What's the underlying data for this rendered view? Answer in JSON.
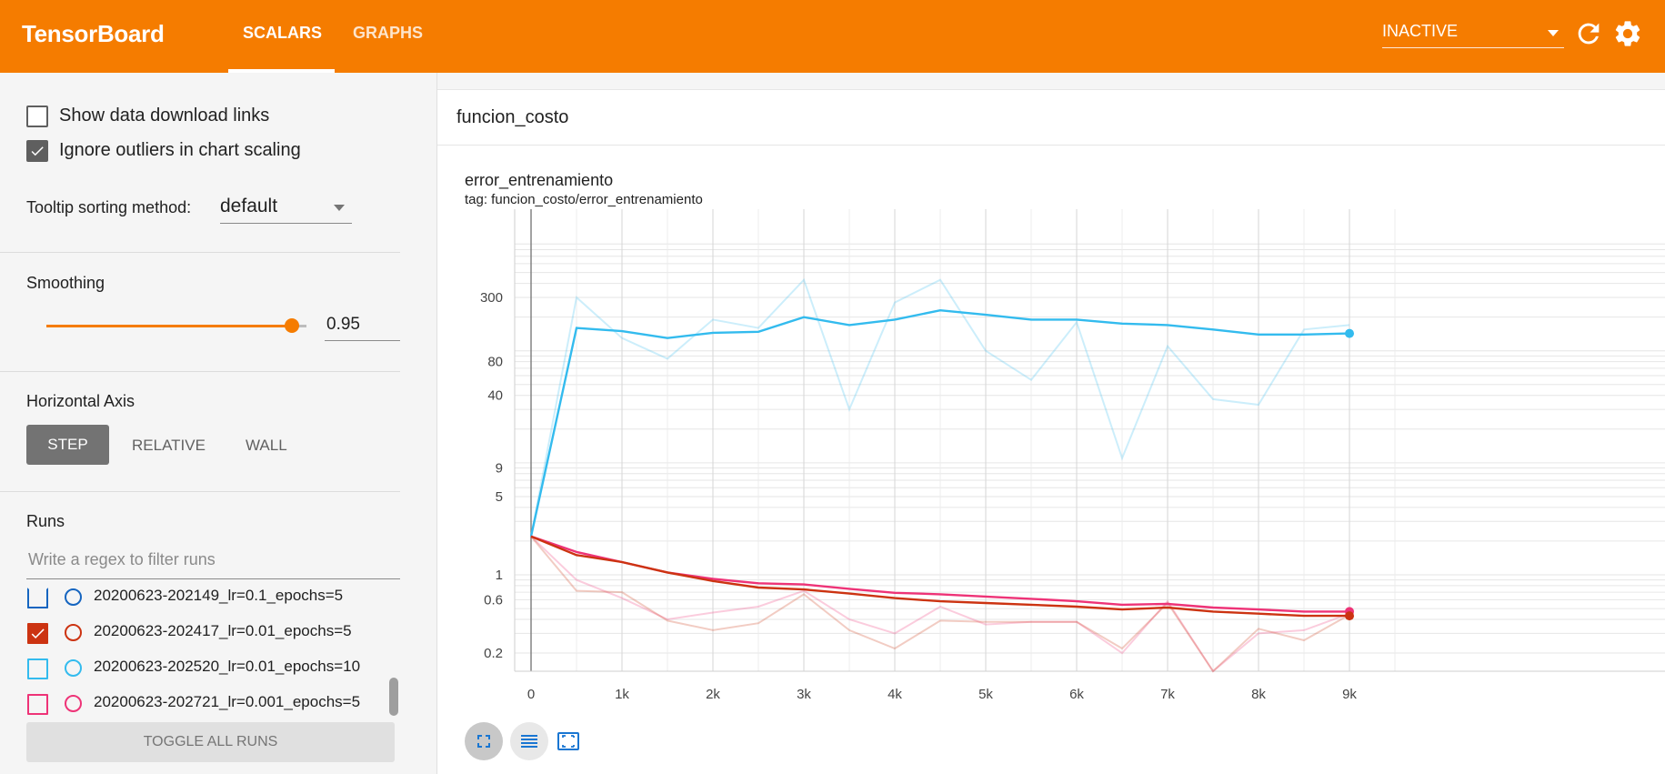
{
  "header": {
    "brand": "TensorBoard",
    "tabs": [
      {
        "label": "SCALARS",
        "active": true
      },
      {
        "label": "GRAPHS",
        "active": false
      }
    ],
    "status_select": "INACTIVE",
    "accent_color": "#f57c00"
  },
  "sidebar": {
    "show_download_links": {
      "label": "Show data download links",
      "checked": false
    },
    "ignore_outliers": {
      "label": "Ignore outliers in chart scaling",
      "checked": true
    },
    "tooltip_sorting": {
      "label": "Tooltip sorting method:",
      "value": "default"
    },
    "smoothing": {
      "title": "Smoothing",
      "value": "0.95",
      "fraction": 0.95
    },
    "horizontal_axis": {
      "title": "Horizontal Axis",
      "options": [
        "STEP",
        "RELATIVE",
        "WALL"
      ],
      "selected": "STEP"
    },
    "runs": {
      "title": "Runs",
      "filter_placeholder": "Write a regex to filter runs",
      "items": [
        {
          "label": "20200623-202149_lr=0.1_epochs=5",
          "checked": false,
          "color": "#1565c0"
        },
        {
          "label": "20200623-202417_lr=0.01_epochs=5",
          "checked": true,
          "color": "#cc3311"
        },
        {
          "label": "20200623-202520_lr=0.01_epochs=10",
          "checked": false,
          "color": "#33bbee"
        },
        {
          "label": "20200623-202721_lr=0.001_epochs=5",
          "checked": false,
          "color": "#ee3377"
        }
      ],
      "toggle_label": "TOGGLE ALL RUNS"
    }
  },
  "main": {
    "group_title": "funcion_costo",
    "chart_title": "error_entrenamiento",
    "chart_tag": "tag: funcion_costo/error_entrenamiento"
  },
  "chart_data": {
    "type": "line",
    "title": "error_entrenamiento",
    "x_scale": "linear",
    "y_scale": "log",
    "x_ticks": [
      "0",
      "1k",
      "2k",
      "3k",
      "4k",
      "5k",
      "6k",
      "7k",
      "8k",
      "9k"
    ],
    "y_ticks": [
      "0.2",
      "0.6",
      "1",
      "5",
      "9",
      "40",
      "80",
      "300"
    ],
    "xlim": [
      -1000,
      9800
    ],
    "ylim": [
      0.15,
      500
    ],
    "grid": true,
    "series": [
      {
        "color": "#33bbee",
        "smoothed": {
          "x": [
            0,
            500,
            1000,
            1500,
            2000,
            2500,
            3000,
            3500,
            4000,
            4500,
            5000,
            5500,
            6000,
            6500,
            7000,
            7500,
            8000,
            8500,
            9000
          ],
          "y": [
            2.2,
            160,
            150,
            130,
            145,
            148,
            200,
            170,
            190,
            230,
            210,
            190,
            190,
            175,
            170,
            155,
            140,
            140,
            143
          ]
        },
        "raw": {
          "x": [
            0,
            500,
            1000,
            1500,
            2000,
            2500,
            3000,
            3500,
            4000,
            4500,
            5000,
            5500,
            6000,
            6500,
            7000,
            7500,
            8000,
            8500,
            9000
          ],
          "y": [
            2.2,
            300,
            130,
            85,
            190,
            160,
            430,
            30,
            270,
            430,
            100,
            55,
            180,
            11,
            110,
            37,
            33,
            155,
            170
          ]
        }
      },
      {
        "color": "#ee3377",
        "smoothed": {
          "x": [
            0,
            500,
            1000,
            1500,
            2000,
            2500,
            3000,
            3500,
            4000,
            4500,
            5000,
            5500,
            6000,
            6500,
            7000,
            7500,
            8000,
            8500,
            9000
          ],
          "y": [
            2.2,
            1.6,
            1.3,
            1.05,
            0.92,
            0.84,
            0.82,
            0.75,
            0.69,
            0.67,
            0.64,
            0.61,
            0.58,
            0.54,
            0.55,
            0.51,
            0.49,
            0.47,
            0.47
          ]
        },
        "raw": {
          "x": [
            0,
            500,
            1000,
            1500,
            2000,
            2500,
            3000,
            3500,
            4000,
            4500,
            5000,
            5500,
            6000,
            6500,
            7000,
            7500,
            8000,
            8500,
            9000
          ],
          "y": [
            2.2,
            0.9,
            0.62,
            0.4,
            0.46,
            0.52,
            0.72,
            0.4,
            0.3,
            0.52,
            0.36,
            0.38,
            0.38,
            0.2,
            0.58,
            0.11,
            0.3,
            0.32,
            0.45
          ]
        }
      },
      {
        "color": "#cc3311",
        "smoothed": {
          "x": [
            0,
            500,
            1000,
            1500,
            2000,
            2500,
            3000,
            3500,
            4000,
            4500,
            5000,
            5500,
            6000,
            6500,
            7000,
            7500,
            8000,
            8500,
            9000
          ],
          "y": [
            2.2,
            1.5,
            1.3,
            1.05,
            0.88,
            0.77,
            0.74,
            0.68,
            0.62,
            0.58,
            0.56,
            0.54,
            0.52,
            0.49,
            0.51,
            0.47,
            0.45,
            0.43,
            0.43
          ]
        },
        "raw": {
          "x": [
            0,
            500,
            1000,
            1500,
            2000,
            2500,
            3000,
            3500,
            4000,
            4500,
            5000,
            5500,
            6000,
            6500,
            7000,
            7500,
            8000,
            8500,
            9000
          ],
          "y": [
            2.2,
            0.72,
            0.7,
            0.39,
            0.32,
            0.37,
            0.67,
            0.32,
            0.22,
            0.39,
            0.38,
            0.38,
            0.38,
            0.22,
            0.56,
            0.12,
            0.33,
            0.26,
            0.44
          ]
        }
      }
    ]
  }
}
